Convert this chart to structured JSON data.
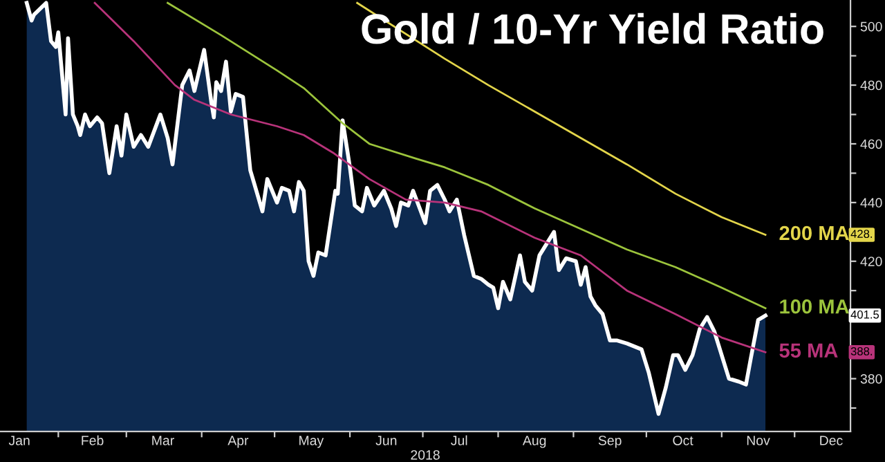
{
  "chart_data": {
    "type": "area",
    "title": "Gold / 10-Yr Yield Ratio",
    "xlabel": "2018",
    "xlim": [
      "2018-01-08",
      "2018-12-24"
    ],
    "ylim": [
      362,
      509
    ],
    "xticks": [
      {
        "value": "2018-01-16",
        "label": "Jan"
      },
      {
        "value": "2018-02-01",
        "label": null
      },
      {
        "value": "2018-02-15",
        "label": "Feb"
      },
      {
        "value": "2018-03-01",
        "label": null
      },
      {
        "value": "2018-03-16",
        "label": "Mar"
      },
      {
        "value": "2018-04-01",
        "label": null
      },
      {
        "value": "2018-04-16",
        "label": "Apr"
      },
      {
        "value": "2018-05-01",
        "label": null
      },
      {
        "value": "2018-05-16",
        "label": "May"
      },
      {
        "value": "2018-06-01",
        "label": null
      },
      {
        "value": "2018-06-16",
        "label": "Jun"
      },
      {
        "value": "2018-07-01",
        "label": null
      },
      {
        "value": "2018-07-16",
        "label": "Jul"
      },
      {
        "value": "2018-08-01",
        "label": null
      },
      {
        "value": "2018-08-16",
        "label": "Aug"
      },
      {
        "value": "2018-09-01",
        "label": null
      },
      {
        "value": "2018-09-16",
        "label": "Sep"
      },
      {
        "value": "2018-10-01",
        "label": null
      },
      {
        "value": "2018-10-16",
        "label": "Oct"
      },
      {
        "value": "2018-11-01",
        "label": null
      },
      {
        "value": "2018-11-16",
        "label": "Nov"
      },
      {
        "value": "2018-12-01",
        "label": null
      },
      {
        "value": "2018-12-16",
        "label": "Dec"
      }
    ],
    "yticks": [
      {
        "value": 370,
        "label": null
      },
      380,
      {
        "value": 390,
        "label": null
      },
      {
        "value": 400,
        "label": null
      },
      {
        "value": 410,
        "label": null
      },
      420,
      {
        "value": 430,
        "label": null
      },
      440,
      {
        "value": 450,
        "label": null
      },
      460,
      {
        "value": 470,
        "label": null
      },
      480,
      {
        "value": 490,
        "label": null
      },
      500
    ],
    "grid": false,
    "legend": "right",
    "series": [
      {
        "color": "#ffffff",
        "x": [
          "2018-01-19",
          "2018-01-21",
          "2018-01-22",
          "2018-01-27",
          "2018-01-29",
          "2018-01-31",
          "2018-02-01",
          "2018-02-04",
          "2018-02-05",
          "2018-02-07",
          "2018-02-09",
          "2018-02-10",
          "2018-02-12",
          "2018-02-14",
          "2018-02-17",
          "2018-02-19",
          "2018-02-22",
          "2018-02-25",
          "2018-02-27",
          "2018-03-01",
          "2018-03-04",
          "2018-03-07",
          "2018-03-10",
          "2018-03-15",
          "2018-03-18",
          "2018-03-20",
          "2018-03-24",
          "2018-03-27",
          "2018-03-29",
          "2018-03-31",
          "2018-04-02",
          "2018-04-05",
          "2018-04-06",
          "2018-04-07",
          "2018-04-09",
          "2018-04-11",
          "2018-04-13",
          "2018-04-15",
          "2018-04-18",
          "2018-04-21",
          "2018-04-26",
          "2018-04-28",
          "2018-05-02",
          "2018-05-04",
          "2018-05-07",
          "2018-05-09",
          "2018-05-11",
          "2018-05-13",
          "2018-05-15",
          "2018-05-17",
          "2018-05-19",
          "2018-05-22",
          "2018-05-26",
          "2018-05-27",
          "2018-05-29",
          "2018-06-01",
          "2018-06-03",
          "2018-06-06",
          "2018-06-08",
          "2018-06-11",
          "2018-06-15",
          "2018-06-18",
          "2018-06-20",
          "2018-06-22",
          "2018-06-25",
          "2018-06-27",
          "2018-07-02",
          "2018-07-04",
          "2018-07-07",
          "2018-07-10",
          "2018-07-12",
          "2018-07-15",
          "2018-07-18",
          "2018-07-22",
          "2018-07-25",
          "2018-07-28",
          "2018-07-30",
          "2018-08-01",
          "2018-08-03",
          "2018-08-06",
          "2018-08-10",
          "2018-08-12",
          "2018-08-15",
          "2018-08-18",
          "2018-08-21",
          "2018-08-24",
          "2018-08-26",
          "2018-08-29",
          "2018-09-02",
          "2018-09-04",
          "2018-09-06",
          "2018-09-08",
          "2018-09-10",
          "2018-09-13",
          "2018-09-16",
          "2018-09-19",
          "2018-09-23",
          "2018-09-29",
          "2018-10-02",
          "2018-10-04",
          "2018-10-06",
          "2018-10-09",
          "2018-10-12",
          "2018-10-14",
          "2018-10-17",
          "2018-10-20",
          "2018-10-23",
          "2018-10-26",
          "2018-10-29",
          "2018-11-01",
          "2018-11-04",
          "2018-11-08",
          "2018-11-11",
          "2018-11-13",
          "2018-11-16",
          "2018-11-19"
        ],
        "values": [
          508,
          502,
          504,
          508,
          495,
          493,
          498,
          470,
          496,
          470,
          466,
          463,
          470,
          466,
          469,
          467,
          450,
          466,
          456,
          470,
          459,
          463,
          459,
          470,
          462,
          453,
          480,
          485,
          478,
          485,
          492,
          474,
          469,
          481,
          478,
          488,
          471,
          477,
          476,
          451,
          437,
          448,
          440,
          445,
          444,
          437,
          447,
          444,
          420,
          415,
          423,
          422,
          444,
          443,
          468,
          452,
          439,
          437,
          445,
          439,
          444,
          438,
          432,
          440,
          439,
          444,
          433,
          444,
          446,
          441,
          437,
          441,
          429,
          415,
          414,
          412,
          411,
          404,
          413,
          407,
          422,
          413,
          410,
          422,
          426,
          430,
          417,
          421,
          420,
          412,
          418,
          408,
          405,
          402,
          393,
          393,
          392,
          390,
          382,
          375,
          368,
          377,
          388,
          388,
          383,
          388,
          397,
          401,
          396,
          388,
          380,
          379,
          378,
          387,
          400,
          401.5
        ]
      },
      {
        "type": "line",
        "name": "200 MA",
        "color": "#e3d54a",
        "x": [
          "2018-06-04",
          "2018-07-10",
          "2018-07-28",
          "2018-08-16",
          "2018-09-04",
          "2018-09-23",
          "2018-10-13",
          "2018-11-01",
          "2018-11-19"
        ],
        "values": [
          508,
          489,
          480,
          471,
          462,
          453,
          443,
          435,
          429
        ]
      },
      {
        "type": "line",
        "name": "100 MA",
        "color": "#9cc43c",
        "x": [
          "2018-03-18",
          "2018-04-09",
          "2018-05-02",
          "2018-05-13",
          "2018-05-29",
          "2018-06-09",
          "2018-06-28",
          "2018-07-10",
          "2018-07-28",
          "2018-08-16",
          "2018-09-04",
          "2018-09-23",
          "2018-10-13",
          "2018-11-01",
          "2018-11-19"
        ],
        "values": [
          508,
          497,
          485,
          479,
          467,
          460,
          455,
          452,
          446,
          438,
          431,
          424,
          418,
          411,
          404
        ]
      },
      {
        "type": "line",
        "name": "55 MA",
        "color": "#b8337a",
        "x": [
          "2018-02-16",
          "2018-03-04",
          "2018-03-21",
          "2018-03-29",
          "2018-04-13",
          "2018-05-02",
          "2018-05-13",
          "2018-05-25",
          "2018-06-09",
          "2018-06-24",
          "2018-07-10",
          "2018-07-25",
          "2018-08-16",
          "2018-09-04",
          "2018-09-23",
          "2018-10-13",
          "2018-11-01",
          "2018-11-19"
        ],
        "values": [
          508,
          495,
          480,
          475,
          470,
          466,
          463,
          457,
          448,
          441,
          440,
          437,
          428,
          422,
          410,
          402,
          394,
          389
        ]
      }
    ],
    "annotations": [
      "428.",
      "401.5",
      "388."
    ]
  }
}
